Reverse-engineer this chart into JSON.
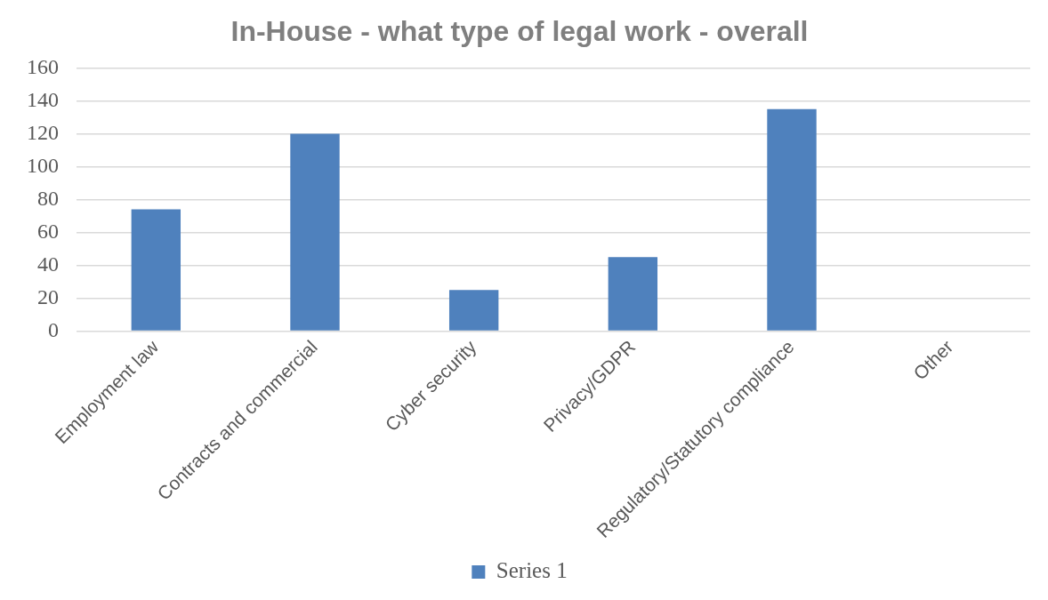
{
  "chart_data": {
    "type": "bar",
    "title": "In-House - what type of legal work - overall",
    "categories": [
      "Employment law",
      "Contracts and commercial",
      "Cyber security",
      "Privacy/GDPR",
      "Regulatory/Statutory compliance",
      "Other"
    ],
    "series": [
      {
        "name": "Series 1",
        "color": "#4f81bd",
        "values": [
          74,
          120,
          25,
          45,
          135,
          0
        ]
      }
    ],
    "ylim": [
      0,
      160
    ],
    "yticks": [
      0,
      20,
      40,
      60,
      80,
      100,
      120,
      140,
      160
    ],
    "grid": "y",
    "legend": "bottom"
  }
}
